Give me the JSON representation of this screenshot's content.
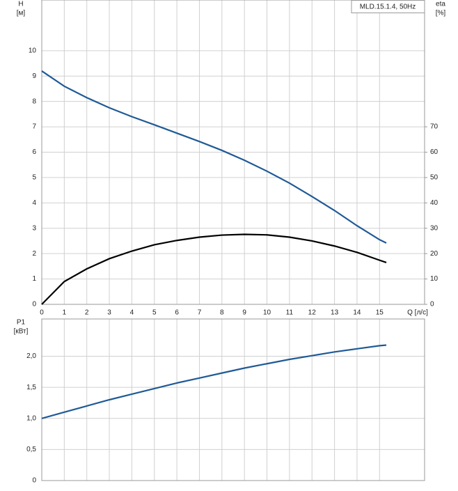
{
  "chart_data": [
    {
      "type": "line",
      "title": "MLD.15.1.4, 50Hz",
      "xlabel": "Q [л/с]",
      "y_unit": "[м]",
      "y2_unit": "[%]",
      "x": [
        0,
        1,
        2,
        3,
        4,
        5,
        6,
        7,
        8,
        9,
        10,
        11,
        12,
        13,
        14,
        15,
        15.3
      ],
      "series": [
        {
          "name": "H",
          "color": "#1f5a96",
          "values": [
            9.2,
            8.6,
            8.15,
            7.75,
            7.4,
            7.08,
            6.75,
            6.42,
            6.07,
            5.68,
            5.25,
            4.78,
            4.25,
            3.7,
            3.1,
            2.55,
            2.42
          ]
        },
        {
          "name": "eta",
          "color": "#000000",
          "axis": "y2",
          "values": [
            0,
            9,
            14,
            18,
            21,
            23.5,
            25.2,
            26.5,
            27.3,
            27.6,
            27.4,
            26.5,
            25,
            23,
            20.5,
            17.4,
            16.5
          ]
        }
      ],
      "xlim": [
        0,
        17
      ],
      "xticks": [
        0,
        1,
        2,
        3,
        4,
        5,
        6,
        7,
        8,
        9,
        10,
        11,
        12,
        13,
        14,
        15
      ],
      "ylim": [
        0,
        12
      ],
      "yticks": [
        0,
        1,
        2,
        3,
        4,
        5,
        6,
        7,
        8,
        9,
        10
      ],
      "y2lim": [
        0,
        120
      ],
      "y2ticks": [
        0,
        10,
        20,
        30,
        40,
        50,
        60,
        70
      ],
      "grid": true
    },
    {
      "type": "line",
      "y_unit": "[кВт]",
      "x": [
        0,
        1,
        2,
        3,
        4,
        5,
        6,
        7,
        8,
        9,
        10,
        11,
        12,
        13,
        14,
        15,
        15.3
      ],
      "series": [
        {
          "name": "P1",
          "color": "#1f5a96",
          "values": [
            1.0,
            1.1,
            1.2,
            1.3,
            1.39,
            1.48,
            1.57,
            1.65,
            1.73,
            1.81,
            1.88,
            1.95,
            2.01,
            2.07,
            2.12,
            2.17,
            2.18
          ]
        }
      ],
      "xlim": [
        0,
        17
      ],
      "ylim": [
        0,
        2.6
      ],
      "yticks": [
        0,
        {
          "value": 0.5,
          "label": "0,5"
        },
        {
          "value": 1,
          "label": "1,0"
        },
        {
          "value": 1.5,
          "label": "1,5"
        },
        {
          "value": 2,
          "label": "2,0"
        }
      ],
      "grid": true
    }
  ]
}
